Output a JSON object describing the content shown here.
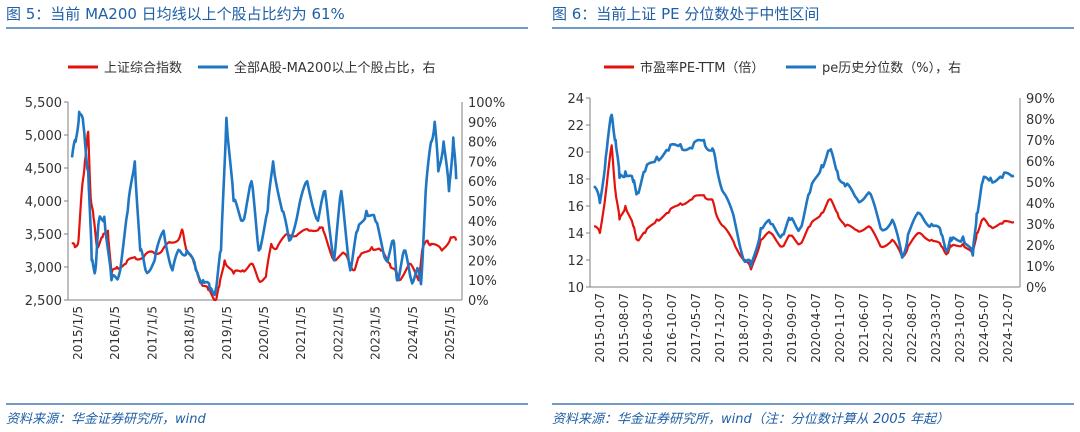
{
  "charts": [
    {
      "title": "图 5：当前 MA200 日均线以上个股占比约为 61%",
      "source": "资料来源：华金证券研究所，wind",
      "colors": {
        "primary": "#e3120b",
        "secondary": "#1f77c4",
        "accent": "#1f5fa6"
      }
    },
    {
      "title": "图 6：当前上证 PE 分位数处于中性区间",
      "source": "资料来源：华金证券研究所，wind（注：分位数计算从 2005 年起）",
      "colors": {
        "primary": "#e3120b",
        "secondary": "#1f77c4",
        "accent": "#1f5fa6"
      }
    }
  ],
  "chart_data": [
    {
      "type": "line",
      "title": "图 5：当前 MA200 日均线以上个股占比约为 61%",
      "x_ticks": [
        "2015/1/5",
        "2016/1/5",
        "2017/1/5",
        "2018/1/5",
        "2019/1/5",
        "2020/1/5",
        "2021/1/5",
        "2022/1/5",
        "2023/1/5",
        "2024/1/5",
        "2025/1/5"
      ],
      "x_range": [
        2015.0,
        2025.75
      ],
      "y_left": {
        "ticks": [
          "2,500",
          "3,000",
          "3,500",
          "4,000",
          "4,500",
          "5,000",
          "5,500"
        ],
        "min": 2500,
        "max": 5500
      },
      "y_right": {
        "ticks": [
          "0%",
          "10%",
          "20%",
          "30%",
          "40%",
          "50%",
          "60%",
          "70%",
          "80%",
          "90%",
          "100%"
        ],
        "min": 0,
        "max": 100
      },
      "series": [
        {
          "name": "上证综合指数",
          "axis": "left",
          "color": "#e3120b",
          "x": [
            2015.0,
            2015.08,
            2015.18,
            2015.28,
            2015.36,
            2015.45,
            2015.52,
            2015.6,
            2015.7,
            2015.85,
            2016.0,
            2016.1,
            2016.25,
            2016.5,
            2016.75,
            2017.0,
            2017.25,
            2017.5,
            2017.75,
            2018.0,
            2018.08,
            2018.2,
            2018.4,
            2018.6,
            2018.8,
            2019.0,
            2019.1,
            2019.25,
            2019.5,
            2019.75,
            2020.0,
            2020.2,
            2020.4,
            2020.55,
            2020.7,
            2021.0,
            2021.3,
            2021.6,
            2021.9,
            2022.0,
            2022.3,
            2022.6,
            2022.85,
            2023.0,
            2023.35,
            2023.6,
            2023.85,
            2024.0,
            2024.1,
            2024.4,
            2024.65,
            2024.75,
            2024.9,
            2025.0,
            2025.3,
            2025.55,
            2025.7
          ],
          "y": [
            3350,
            3300,
            3400,
            4200,
            4600,
            5050,
            4050,
            3750,
            3300,
            3450,
            3550,
            2900,
            3000,
            3050,
            3150,
            3150,
            3230,
            3240,
            3370,
            3450,
            3550,
            3250,
            3050,
            2750,
            2650,
            2500,
            2700,
            3100,
            2900,
            2950,
            3050,
            2800,
            2850,
            3350,
            3280,
            3500,
            3500,
            3550,
            3600,
            3550,
            3100,
            3200,
            2950,
            3150,
            3300,
            3250,
            3050,
            2950,
            2800,
            3050,
            2800,
            3250,
            3400,
            3350,
            3250,
            3450,
            3400
          ]
        },
        {
          "name": "全部A股-MA200以上个股占比，右",
          "axis": "right",
          "color": "#1f77c4",
          "x": [
            2015.0,
            2015.1,
            2015.2,
            2015.32,
            2015.45,
            2015.55,
            2015.65,
            2015.75,
            2015.9,
            2016.1,
            2016.3,
            2016.55,
            2016.75,
            2016.9,
            2017.05,
            2017.3,
            2017.55,
            2017.8,
            2018.0,
            2018.2,
            2018.45,
            2018.65,
            2018.85,
            2019.0,
            2019.15,
            2019.3,
            2019.5,
            2019.75,
            2020.0,
            2020.2,
            2020.45,
            2020.6,
            2020.85,
            2021.05,
            2021.3,
            2021.55,
            2021.85,
            2022.05,
            2022.3,
            2022.5,
            2022.75,
            2022.95,
            2023.2,
            2023.45,
            2023.75,
            2023.95,
            2024.05,
            2024.25,
            2024.45,
            2024.6,
            2024.72,
            2024.85,
            2025.0,
            2025.1,
            2025.2,
            2025.35,
            2025.5,
            2025.62,
            2025.7
          ],
          "y": [
            72,
            80,
            95,
            88,
            65,
            20,
            15,
            40,
            42,
            10,
            12,
            45,
            70,
            25,
            15,
            20,
            35,
            15,
            25,
            25,
            15,
            10,
            5,
            5,
            25,
            92,
            50,
            40,
            60,
            25,
            45,
            70,
            45,
            30,
            45,
            60,
            40,
            55,
            20,
            55,
            15,
            35,
            45,
            40,
            20,
            30,
            10,
            25,
            10,
            15,
            8,
            55,
            80,
            90,
            65,
            80,
            55,
            82,
            61
          ]
        }
      ]
    },
    {
      "type": "line",
      "title": "图 6：当前上证 PE 分位数处于中性区间",
      "x_ticks": [
        "2015-01-07",
        "2015-08-07",
        "2016-03-07",
        "2016-10-07",
        "2017-05-07",
        "2017-12-07",
        "2018-07-07",
        "2019-02-07",
        "2019-09-07",
        "2020-04-07",
        "2020-11-07",
        "2021-06-07",
        "2022-01-07",
        "2022-08-07",
        "2023-03-07",
        "2023-10-07",
        "2024-05-07",
        "2024-12-07"
      ],
      "x_range": [
        2015.0,
        2025.75
      ],
      "y_left": {
        "ticks": [
          "10",
          "12",
          "14",
          "16",
          "18",
          "20",
          "22",
          "24"
        ],
        "min": 10,
        "max": 24
      },
      "y_right": {
        "ticks": [
          "0%",
          "10%",
          "20%",
          "30%",
          "40%",
          "50%",
          "60%",
          "70%",
          "80%",
          "90%"
        ],
        "min": 0,
        "max": 90
      },
      "series": [
        {
          "name": "市盈率PE-TTM（倍）",
          "axis": "left",
          "color": "#e3120b",
          "x": [
            2015.0,
            2015.15,
            2015.3,
            2015.45,
            2015.55,
            2015.65,
            2015.8,
            2016.0,
            2016.1,
            2016.3,
            2016.6,
            2016.9,
            2017.2,
            2017.5,
            2017.8,
            2018.0,
            2018.1,
            2018.3,
            2018.6,
            2018.85,
            2019.0,
            2019.25,
            2019.5,
            2019.8,
            2020.0,
            2020.25,
            2020.5,
            2020.8,
            2021.0,
            2021.2,
            2021.4,
            2021.7,
            2022.0,
            2022.3,
            2022.6,
            2022.85,
            2023.0,
            2023.3,
            2023.6,
            2023.85,
            2024.0,
            2024.1,
            2024.4,
            2024.65,
            2024.75,
            2024.9,
            2025.1,
            2025.4,
            2025.7
          ],
          "y": [
            14.5,
            14.0,
            17.0,
            20.5,
            17.0,
            15.0,
            16.0,
            14.5,
            13.5,
            14.0,
            15.0,
            15.5,
            16.2,
            16.5,
            16.8,
            16.5,
            15.5,
            14.5,
            13.0,
            12.0,
            11.3,
            13.5,
            14.0,
            13.0,
            13.8,
            13.2,
            14.5,
            15.5,
            16.5,
            15.5,
            14.5,
            14.2,
            14.5,
            13.0,
            13.5,
            12.2,
            13.0,
            14.0,
            13.5,
            13.0,
            12.5,
            13.0,
            13.2,
            12.4,
            14.0,
            15.0,
            14.5,
            14.7,
            14.8
          ]
        },
        {
          "name": "pe历史分位数（%），右",
          "axis": "right",
          "color": "#1f77c4",
          "x": [
            2015.0,
            2015.15,
            2015.3,
            2015.45,
            2015.55,
            2015.65,
            2015.8,
            2016.0,
            2016.1,
            2016.3,
            2016.6,
            2016.9,
            2017.2,
            2017.5,
            2017.8,
            2018.0,
            2018.1,
            2018.3,
            2018.6,
            2018.85,
            2019.0,
            2019.25,
            2019.5,
            2019.8,
            2020.0,
            2020.25,
            2020.5,
            2020.8,
            2021.0,
            2021.2,
            2021.4,
            2021.7,
            2022.0,
            2022.3,
            2022.6,
            2022.85,
            2023.0,
            2023.3,
            2023.6,
            2023.85,
            2024.0,
            2024.1,
            2024.4,
            2024.65,
            2024.75,
            2024.9,
            2025.1,
            2025.4,
            2025.7
          ],
          "y": [
            48,
            40,
            62,
            82,
            70,
            52,
            55,
            50,
            45,
            55,
            62,
            65,
            68,
            66,
            70,
            65,
            60,
            45,
            30,
            12,
            10,
            28,
            30,
            25,
            32,
            28,
            45,
            58,
            65,
            55,
            48,
            42,
            45,
            28,
            32,
            14,
            25,
            35,
            30,
            25,
            18,
            22,
            24,
            15,
            35,
            50,
            52,
            52,
            53
          ]
        }
      ]
    }
  ]
}
